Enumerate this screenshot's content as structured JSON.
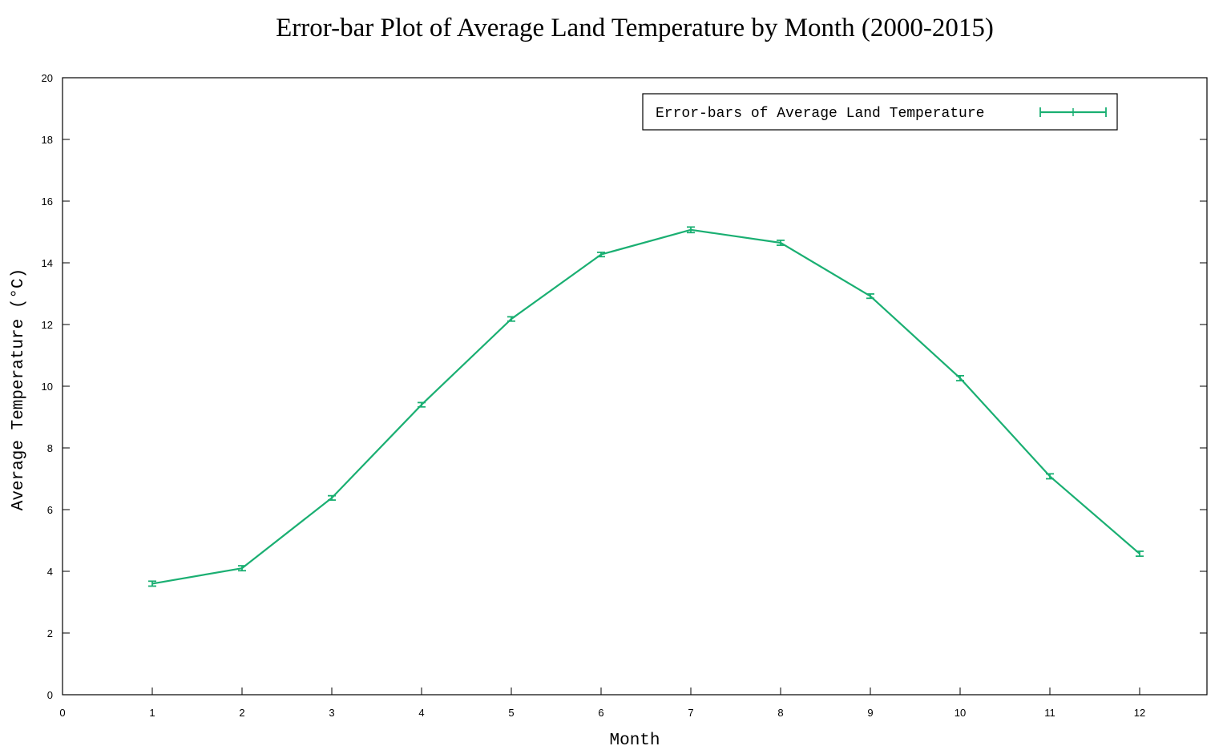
{
  "chart_data": {
    "type": "line",
    "title": "Error-bar Plot of Average Land Temperature by Month (2000-2015)",
    "xlabel": "Month",
    "ylabel": "Average Temperature (°C)",
    "xlim": [
      0,
      12.75
    ],
    "ylim": [
      0,
      20
    ],
    "xticks": [
      0,
      1,
      2,
      3,
      4,
      5,
      6,
      7,
      8,
      9,
      10,
      11,
      12
    ],
    "yticks": [
      0,
      2,
      4,
      6,
      8,
      10,
      12,
      14,
      16,
      18,
      20
    ],
    "grid": false,
    "legend_position": "top-right",
    "series": [
      {
        "name": "Error-bars of Average Land Temperature",
        "color": "#1aaf72",
        "x": [
          1,
          2,
          3,
          4,
          5,
          6,
          7,
          8,
          9,
          10,
          11,
          12
        ],
        "y": [
          3.6,
          4.1,
          6.38,
          9.4,
          12.18,
          14.27,
          15.07,
          14.65,
          12.92,
          10.26,
          7.08,
          4.57
        ],
        "error": [
          0.08,
          0.08,
          0.07,
          0.07,
          0.07,
          0.07,
          0.09,
          0.08,
          0.07,
          0.08,
          0.08,
          0.08
        ]
      }
    ]
  }
}
